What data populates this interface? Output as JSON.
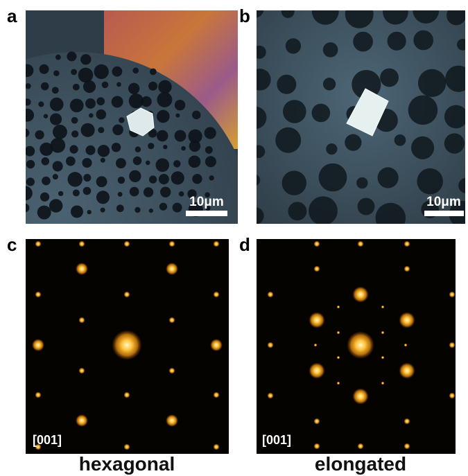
{
  "panels": [
    {
      "label": "a",
      "scale_bar": "10μm"
    },
    {
      "label": "b",
      "scale_bar": "10μm"
    },
    {
      "label": "c",
      "zone_axis": "[001]",
      "caption": "hexagonal"
    },
    {
      "label": "d",
      "zone_axis": "[001]",
      "caption": "elongated"
    }
  ]
}
